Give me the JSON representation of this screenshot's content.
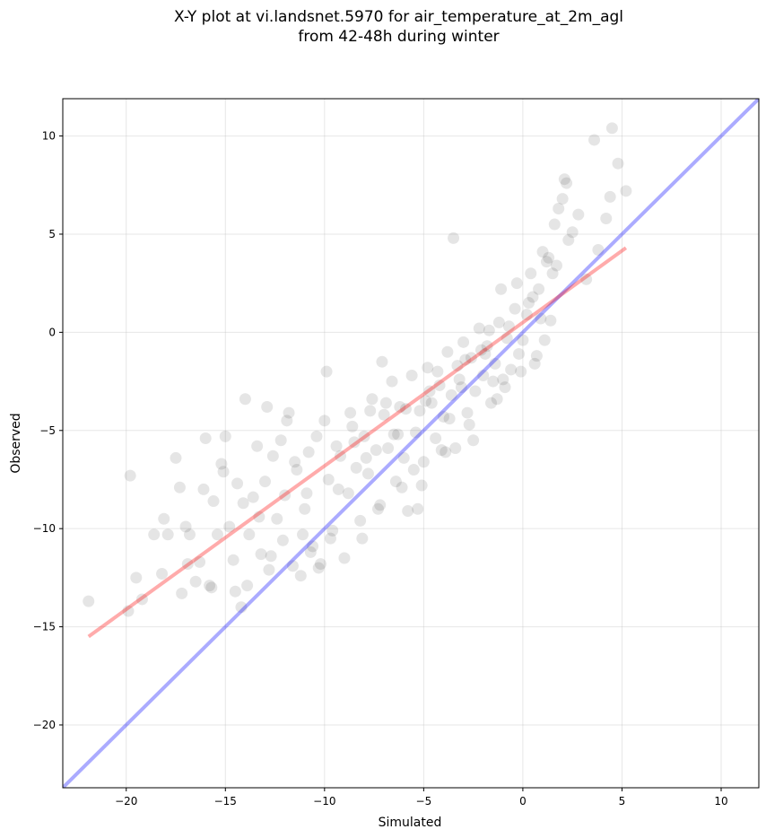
{
  "chart_data": {
    "type": "scatter",
    "title": "X-Y plot at vi.landsnet.5970 for air_temperature_at_2m_agl\nfrom 42-48h during winter",
    "xlabel": "Simulated",
    "ylabel": "Observed",
    "xlim": [
      -23.2,
      11.9
    ],
    "ylim": [
      -23.2,
      11.9
    ],
    "xticks": [
      -20,
      -15,
      -10,
      -5,
      0,
      5,
      10
    ],
    "yticks": [
      -20,
      -15,
      -10,
      -5,
      0,
      5,
      10
    ],
    "xtick_labels": [
      "−20",
      "−15",
      "−10",
      "−5",
      "0",
      "5",
      "10"
    ],
    "ytick_labels": [
      "−20",
      "−15",
      "−10",
      "−5",
      "0",
      "5",
      "10"
    ],
    "grid": true,
    "point_color": "#000000",
    "point_opacity": 0.1,
    "lines": [
      {
        "kind": "one-to-one",
        "color": "#0000ff",
        "opacity": 0.33,
        "x": [
          -23.2,
          11.9
        ],
        "y": [
          -23.2,
          11.9
        ]
      },
      {
        "kind": "regression",
        "color": "#ff0000",
        "opacity": 0.33,
        "x": [
          -21.9,
          5.2
        ],
        "y": [
          -15.5,
          4.3
        ]
      }
    ],
    "x": [
      -21.9,
      -19.9,
      -19.5,
      -19.2,
      -18.6,
      -18.2,
      -17.9,
      -17.5,
      -17.2,
      -17.0,
      -16.8,
      -16.5,
      -16.3,
      -16.0,
      -15.8,
      -15.6,
      -15.4,
      -15.2,
      -15.0,
      -14.8,
      -14.6,
      -14.4,
      -14.2,
      -14.0,
      -13.8,
      -13.6,
      -13.4,
      -13.2,
      -13.0,
      -12.8,
      -12.6,
      -12.4,
      -12.2,
      -12.0,
      -11.8,
      -11.6,
      -11.4,
      -11.2,
      -11.0,
      -10.8,
      -10.6,
      -10.4,
      -10.2,
      -10.0,
      -9.8,
      -9.6,
      -9.4,
      -9.2,
      -9.0,
      -8.8,
      -8.6,
      -8.4,
      -8.2,
      -8.0,
      -7.8,
      -7.6,
      -7.4,
      -7.2,
      -7.0,
      -6.8,
      -6.6,
      -6.4,
      -6.2,
      -6.0,
      -5.8,
      -5.6,
      -5.4,
      -5.2,
      -5.0,
      -4.8,
      -4.6,
      -4.4,
      -4.2,
      -4.0,
      -3.8,
      -3.6,
      -3.4,
      -3.2,
      -3.0,
      -2.8,
      -2.6,
      -2.4,
      -2.2,
      -2.0,
      -1.8,
      -1.6,
      -1.4,
      -1.2,
      -1.0,
      -0.8,
      -0.6,
      -0.4,
      -0.2,
      0.0,
      0.2,
      0.4,
      0.6,
      0.8,
      1.0,
      1.2,
      1.4,
      1.6,
      1.8,
      2.0,
      2.2,
      2.5,
      2.8,
      3.2,
      3.6,
      4.2,
      4.5,
      4.8,
      5.2,
      -19.8,
      -17.3,
      -15.7,
      -14.1,
      -12.7,
      -11.9,
      -10.9,
      -9.7,
      -8.7,
      -7.9,
      -7.3,
      -6.5,
      -5.9,
      -5.1,
      -4.3,
      -3.7,
      -3.1,
      -2.5,
      -1.9,
      -1.3,
      -0.7,
      -0.1,
      0.5,
      1.1,
      1.7,
      2.3,
      -16.9,
      -13.3,
      -11.5,
      -9.3,
      -8.1,
      -6.9,
      -5.5,
      -4.1,
      -2.9,
      -1.7,
      -0.9,
      0.3,
      1.5,
      -14.5,
      -12.1,
      -10.3,
      -7.7,
      -6.3,
      -4.7,
      -3.3,
      -2.1,
      -1.1,
      0.7,
      3.8,
      4.4,
      -18.1,
      -15.1,
      -12.9,
      -10.7,
      -8.5,
      -6.1,
      -4.9,
      -3.9,
      -2.7,
      -1.5,
      -0.3,
      0.9,
      2.1,
      1.3,
      -3.5,
      -9.9,
      -11.1,
      -13.9,
      -16.1,
      -5.3,
      -7.1
    ],
    "y": [
      -13.7,
      -14.2,
      -12.5,
      -13.6,
      -10.3,
      -12.3,
      -10.3,
      -6.4,
      -13.3,
      -9.9,
      -10.3,
      -12.7,
      -11.7,
      -5.4,
      -12.9,
      -8.6,
      -10.3,
      -6.7,
      -5.3,
      -9.9,
      -11.6,
      -7.7,
      -14.0,
      -3.4,
      -10.3,
      -8.4,
      -5.8,
      -11.3,
      -7.6,
      -12.1,
      -6.3,
      -9.5,
      -5.5,
      -8.3,
      -4.1,
      -11.9,
      -7.0,
      -12.4,
      -9.0,
      -6.1,
      -10.9,
      -5.3,
      -11.8,
      -4.5,
      -7.5,
      -10.1,
      -5.8,
      -6.3,
      -11.5,
      -8.2,
      -4.8,
      -6.9,
      -9.6,
      -5.3,
      -7.2,
      -3.4,
      -6.0,
      -8.8,
      -4.2,
      -5.9,
      -2.5,
      -7.6,
      -3.8,
      -6.4,
      -9.1,
      -2.2,
      -5.1,
      -4.0,
      -6.6,
      -1.8,
      -3.6,
      -5.4,
      -2.7,
      -4.3,
      -1.0,
      -3.2,
      -5.9,
      -2.4,
      -0.5,
      -4.1,
      -1.3,
      -3.0,
      0.2,
      -2.2,
      -0.7,
      -3.6,
      -1.6,
      0.5,
      -2.4,
      -0.3,
      -1.9,
      1.2,
      -1.1,
      -0.4,
      0.9,
      3.0,
      -1.6,
      2.2,
      4.1,
      3.6,
      0.6,
      5.5,
      6.3,
      6.8,
      7.6,
      5.1,
      6.0,
      2.7,
      9.8,
      5.8,
      10.4,
      8.6,
      7.2,
      -7.3,
      -7.9,
      -13.0,
      -8.7,
      -11.4,
      -4.5,
      -8.2,
      -10.5,
      -4.1,
      -6.4,
      -9.0,
      -5.2,
      -3.9,
      -7.8,
      -2.0,
      -4.4,
      -2.8,
      -5.5,
      -1.1,
      -3.4,
      0.3,
      -2.0,
      1.8,
      -0.4,
      3.4,
      4.7,
      -11.8,
      -9.4,
      -6.6,
      -8.0,
      -10.5,
      -3.6,
      -7.0,
      -6.0,
      -1.4,
      0.1,
      -2.8,
      1.5,
      3.0,
      -13.2,
      -10.6,
      -12.0,
      -4.0,
      -5.2,
      -3.0,
      -1.7,
      -0.9,
      2.2,
      -1.2,
      4.2,
      6.9,
      -9.5,
      -7.1,
      -3.8,
      -11.2,
      -5.6,
      -7.9,
      -3.5,
      -6.1,
      -4.7,
      -2.5,
      2.5,
      0.7,
      7.8,
      3.8,
      4.8,
      -2.0,
      -10.3,
      -12.9,
      -8.0,
      -9.0,
      -1.5
    ]
  }
}
